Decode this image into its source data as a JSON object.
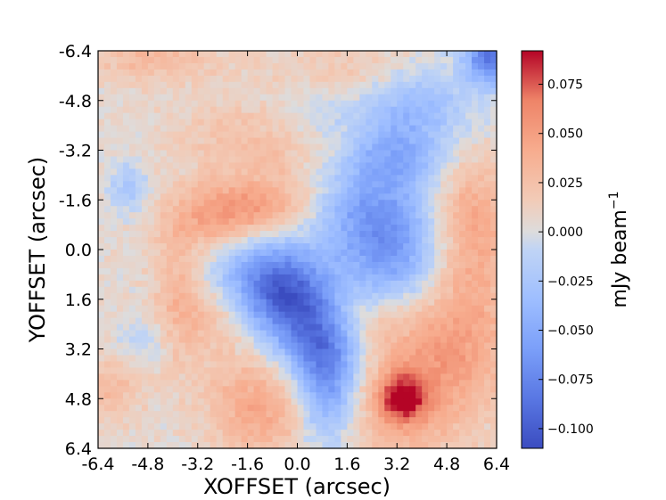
{
  "chart_data": {
    "type": "heatmap",
    "title": "",
    "xlabel": "XOFFSET (arcsec)",
    "ylabel": "YOFFSET (arcsec)",
    "xlim": [
      -6.4,
      6.4
    ],
    "ylim": [
      -6.4,
      6.4
    ],
    "y_axis_inverted": true,
    "x_ticks": [
      "-6.4",
      "-4.8",
      "-3.2",
      "-1.6",
      "0.0",
      "1.6",
      "3.2",
      "4.8",
      "6.4"
    ],
    "y_ticks": [
      "-6.4",
      "-4.8",
      "-3.2",
      "-1.6",
      "0.0",
      "1.6",
      "3.2",
      "4.8",
      "6.4"
    ],
    "colormap": "coolwarm",
    "colorbar": {
      "label": "mJy beam",
      "label_exponent": "−1",
      "range": [
        -0.11,
        0.092
      ],
      "ticks": [
        {
          "value": 0.075,
          "label": "0.075"
        },
        {
          "value": 0.05,
          "label": "0.050"
        },
        {
          "value": 0.025,
          "label": "0.025"
        },
        {
          "value": 0.0,
          "label": "0.000"
        },
        {
          "value": -0.025,
          "label": "−0.025"
        },
        {
          "value": -0.05,
          "label": "−0.050"
        },
        {
          "value": -0.075,
          "label": "−0.075"
        },
        {
          "value": -0.1,
          "label": "−0.100"
        }
      ]
    },
    "features": [
      {
        "kind": "positive",
        "x": -4.6,
        "y": -6.2,
        "sx": 1.6,
        "sy": 0.6,
        "value": 0.025
      },
      {
        "kind": "positive",
        "x": 1.4,
        "y": -5.2,
        "sx": 1.5,
        "sy": 0.9,
        "value": 0.028
      },
      {
        "kind": "positive",
        "x": -1.2,
        "y": -3.6,
        "sx": 1.8,
        "sy": 1.0,
        "value": 0.022
      },
      {
        "kind": "positive",
        "x": -1.4,
        "y": -1.4,
        "sx": 1.4,
        "sy": 0.7,
        "value": 0.04
      },
      {
        "kind": "positive",
        "x": -2.6,
        "y": -0.8,
        "sx": 1.2,
        "sy": 0.7,
        "value": 0.025
      },
      {
        "kind": "positive",
        "x": -3.8,
        "y": 1.4,
        "sx": 0.6,
        "sy": 1.6,
        "value": 0.028
      },
      {
        "kind": "positive",
        "x": -2.6,
        "y": 2.2,
        "sx": 0.8,
        "sy": 0.8,
        "value": 0.022
      },
      {
        "kind": "positive",
        "x": 5.6,
        "y": -0.8,
        "sx": 0.9,
        "sy": 1.6,
        "value": 0.04
      },
      {
        "kind": "positive",
        "x": 5.0,
        "y": 3.0,
        "sx": 1.5,
        "sy": 1.6,
        "value": 0.04
      },
      {
        "kind": "positive",
        "x": 3.4,
        "y": 4.8,
        "sx": 0.5,
        "sy": 0.5,
        "value": 0.06
      },
      {
        "kind": "positive",
        "x": 3.2,
        "y": 5.0,
        "sx": 1.5,
        "sy": 1.4,
        "value": 0.035
      },
      {
        "kind": "positive",
        "x": -1.2,
        "y": 5.0,
        "sx": 1.2,
        "sy": 1.2,
        "value": 0.04
      },
      {
        "kind": "positive",
        "x": -6.0,
        "y": 4.4,
        "sx": 0.7,
        "sy": 0.8,
        "value": 0.025
      },
      {
        "kind": "positive",
        "x": 2.2,
        "y": 2.2,
        "sx": 0.7,
        "sy": 0.6,
        "value": 0.018
      },
      {
        "kind": "negative",
        "x": 6.2,
        "y": -6.2,
        "sx": 0.6,
        "sy": 0.6,
        "value": -0.09
      },
      {
        "kind": "negative",
        "x": 3.6,
        "y": -4.6,
        "sx": 1.4,
        "sy": 0.8,
        "value": -0.045
      },
      {
        "kind": "negative",
        "x": 0.6,
        "y": -4.6,
        "sx": 1.2,
        "sy": 0.7,
        "value": -0.03
      },
      {
        "kind": "negative",
        "x": 3.2,
        "y": -3.0,
        "sx": 1.2,
        "sy": 0.7,
        "value": -0.045
      },
      {
        "kind": "negative",
        "x": 2.2,
        "y": -1.4,
        "sx": 1.2,
        "sy": 1.0,
        "value": -0.045
      },
      {
        "kind": "negative",
        "x": 3.0,
        "y": 0.2,
        "sx": 1.2,
        "sy": 1.2,
        "value": -0.06
      },
      {
        "kind": "negative",
        "x": -1.0,
        "y": 0.8,
        "sx": 1.2,
        "sy": 1.0,
        "value": -0.06
      },
      {
        "kind": "negative",
        "x": -0.2,
        "y": 1.8,
        "sx": 1.0,
        "sy": 1.0,
        "value": -0.065
      },
      {
        "kind": "negative",
        "x": 0.8,
        "y": 3.2,
        "sx": 0.9,
        "sy": 1.0,
        "value": -0.065
      },
      {
        "kind": "negative",
        "x": 1.0,
        "y": 4.8,
        "sx": 0.7,
        "sy": 1.2,
        "value": -0.055
      },
      {
        "kind": "negative",
        "x": -5.4,
        "y": -2.0,
        "sx": 0.4,
        "sy": 0.6,
        "value": -0.03
      },
      {
        "kind": "negative",
        "x": -5.0,
        "y": 3.0,
        "sx": 0.6,
        "sy": 0.5,
        "value": -0.018
      }
    ]
  }
}
